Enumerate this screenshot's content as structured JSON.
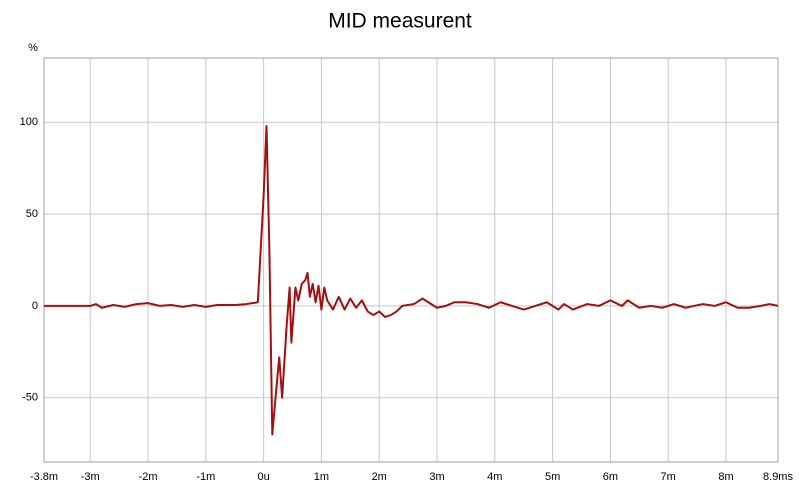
{
  "chart_data": {
    "type": "line",
    "title": "MID measurent",
    "y_label": "%",
    "x": [
      -3.8,
      -3.0,
      -2.9,
      -2.8,
      -2.6,
      -2.4,
      -2.2,
      -2.0,
      -1.8,
      -1.6,
      -1.4,
      -1.2,
      -1.0,
      -0.8,
      -0.5,
      -0.3,
      -0.1,
      0.0,
      0.05,
      0.1,
      0.15,
      0.22,
      0.27,
      0.32,
      0.4,
      0.45,
      0.48,
      0.55,
      0.6,
      0.66,
      0.72,
      0.76,
      0.8,
      0.85,
      0.9,
      0.95,
      1.0,
      1.05,
      1.1,
      1.2,
      1.3,
      1.4,
      1.5,
      1.6,
      1.7,
      1.8,
      1.9,
      2.0,
      2.1,
      2.2,
      2.3,
      2.4,
      2.6,
      2.75,
      2.85,
      3.0,
      3.15,
      3.3,
      3.5,
      3.7,
      3.9,
      4.1,
      4.3,
      4.5,
      4.7,
      4.9,
      5.1,
      5.2,
      5.35,
      5.6,
      5.8,
      6.0,
      6.2,
      6.3,
      6.5,
      6.7,
      6.9,
      7.1,
      7.3,
      7.6,
      7.8,
      8.0,
      8.2,
      8.4,
      8.6,
      8.75,
      8.9
    ],
    "values": [
      0,
      0,
      1,
      -1,
      0.5,
      -0.5,
      1,
      1.5,
      0,
      0.5,
      -0.5,
      0.5,
      -0.5,
      0.5,
      0.5,
      1,
      2,
      60,
      98,
      30,
      -70,
      -45,
      -28,
      -50,
      -10,
      10,
      -20,
      10,
      3,
      12,
      14,
      18,
      5,
      12,
      2,
      11,
      -2,
      10,
      3,
      -2,
      5,
      -2,
      4,
      -1,
      3,
      -3,
      -5,
      -3,
      -6,
      -5,
      -3,
      0,
      1,
      4,
      2,
      -1,
      0,
      2,
      2,
      1,
      -1,
      2,
      0,
      -2,
      0,
      2,
      -2,
      1,
      -2,
      1,
      0,
      3,
      0,
      3,
      -1,
      0,
      -1,
      1,
      -1,
      1,
      0,
      2,
      -1,
      -1,
      0,
      1,
      0
    ],
    "color": "#a50f0f",
    "xlim": [
      -3.8,
      8.9
    ],
    "xticks": [
      {
        "value": -3.8,
        "label": "-3.8m"
      },
      {
        "value": -3,
        "label": "-3m"
      },
      {
        "value": -2,
        "label": "-2m"
      },
      {
        "value": -1,
        "label": "-1m"
      },
      {
        "value": 0,
        "label": "0u"
      },
      {
        "value": 1,
        "label": "1m"
      },
      {
        "value": 2,
        "label": "2m"
      },
      {
        "value": 3,
        "label": "3m"
      },
      {
        "value": 4,
        "label": "4m"
      },
      {
        "value": 5,
        "label": "5m"
      },
      {
        "value": 6,
        "label": "6m"
      },
      {
        "value": 7,
        "label": "7m"
      },
      {
        "value": 8,
        "label": "8m"
      },
      {
        "value": 8.9,
        "label": "8.9ms"
      }
    ],
    "ylim": [
      -85,
      135
    ],
    "yticks": [
      -50,
      0,
      50,
      100
    ],
    "grid": true
  }
}
